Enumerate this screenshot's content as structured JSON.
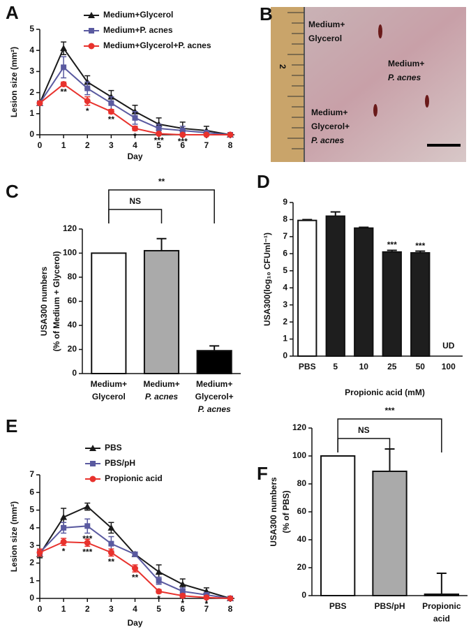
{
  "chart_data": [
    {
      "type": "line",
      "panel": "A",
      "xlabel": "Day",
      "ylabel": [
        "Lesion size (mm²)"
      ],
      "x": [
        0,
        1,
        2,
        3,
        4,
        5,
        6,
        7,
        8
      ],
      "xlim": [
        0,
        8
      ],
      "xticks": [
        0,
        1,
        2,
        3,
        4,
        5,
        6,
        7,
        8
      ],
      "ylim": [
        0,
        5
      ],
      "yticks": [
        0,
        1,
        2,
        3,
        4,
        5
      ],
      "series": [
        {
          "name": "Medium+Glycerol",
          "color": "#1a1a1a",
          "marker": "triangle",
          "values": [
            1.5,
            4.1,
            2.5,
            1.8,
            1.1,
            0.5,
            0.3,
            0.2,
            0.0
          ],
          "errors": [
            0.05,
            0.3,
            0.3,
            0.3,
            0.3,
            0.3,
            0.3,
            0.2,
            0
          ]
        },
        {
          "name": "Medium+P. acnes",
          "color": "#5a5aa0",
          "marker": "square",
          "values": [
            1.5,
            3.2,
            2.2,
            1.5,
            0.8,
            0.3,
            0.2,
            0.1,
            0.0
          ],
          "errors": [
            0.05,
            0.5,
            0.3,
            0.3,
            0.3,
            0.2,
            0.2,
            0.1,
            0
          ]
        },
        {
          "name": "Medium+Glycerol+P. acnes",
          "color": "#e8322d",
          "marker": "circle",
          "values": [
            1.5,
            2.4,
            1.6,
            1.1,
            0.3,
            0.05,
            0.0,
            0.0,
            0.0
          ],
          "errors": [
            0.05,
            0.1,
            0.2,
            0.1,
            0.1,
            0.05,
            0.05,
            0,
            0
          ],
          "significance": [
            null,
            "**",
            "*",
            "**",
            "*",
            "***",
            "***",
            null,
            null
          ]
        }
      ]
    },
    {
      "type": "bar",
      "panel": "C",
      "ylabel": [
        "USA300 numbers",
        "(% of Medium + Glycerol)"
      ],
      "categories": [
        [
          "Medium+",
          "Glycerol"
        ],
        [
          "Medium+",
          "P. acnes"
        ],
        [
          "Medium+",
          "Glycerol+",
          "P. acnes"
        ]
      ],
      "values": [
        100,
        102,
        19
      ],
      "errors": [
        0,
        10,
        4
      ],
      "colors": [
        "#ffffff",
        "#aaaaaa",
        "#000000"
      ],
      "ylim": [
        0,
        120
      ],
      "yticks": [
        0,
        20,
        40,
        60,
        80,
        100,
        120
      ],
      "brackets": [
        {
          "from": 0,
          "to": 1,
          "label": "NS"
        },
        {
          "from": 0,
          "to": 2,
          "label": "**"
        }
      ]
    },
    {
      "type": "bar",
      "panel": "D",
      "xlabel": "Propionic acid (mM)",
      "ylabel": [
        "USA300(log₁₀ CFUml⁻¹)"
      ],
      "categories": [
        "PBS",
        "5",
        "10",
        "25",
        "50",
        "100"
      ],
      "values": [
        7.95,
        8.2,
        7.5,
        6.1,
        6.05,
        null
      ],
      "errors": [
        0.05,
        0.25,
        0.05,
        0.1,
        0.1,
        null
      ],
      "value_labels": [
        null,
        null,
        null,
        null,
        null,
        "UD"
      ],
      "significance": [
        null,
        null,
        null,
        "***",
        "***",
        null
      ],
      "colors": [
        "#ffffff",
        "#1e1e1e",
        "#1e1e1e",
        "#1e1e1e",
        "#1e1e1e",
        "#1e1e1e"
      ],
      "ylim": [
        0,
        9
      ],
      "yticks": [
        0,
        1,
        2,
        3,
        4,
        5,
        6,
        7,
        8,
        9
      ]
    },
    {
      "type": "line",
      "panel": "E",
      "xlabel": "Day",
      "ylabel": [
        "Lesion size (mm²)"
      ],
      "x": [
        0,
        1,
        2,
        3,
        4,
        5,
        6,
        7,
        8
      ],
      "xlim": [
        0,
        8
      ],
      "xticks": [
        0,
        1,
        2,
        3,
        4,
        5,
        6,
        7,
        8
      ],
      "ylim": [
        0,
        7
      ],
      "yticks": [
        0,
        1,
        2,
        3,
        4,
        5,
        6,
        7
      ],
      "series": [
        {
          "name": "PBS",
          "color": "#1a1a1a",
          "marker": "triangle",
          "values": [
            2.5,
            4.6,
            5.2,
            4.0,
            2.5,
            1.5,
            0.8,
            0.4,
            0.0
          ],
          "errors": [
            0.2,
            0.5,
            0.2,
            0.3,
            0.1,
            0.4,
            0.3,
            0.2,
            0
          ]
        },
        {
          "name": "PBS/pH",
          "color": "#5a5aa0",
          "marker": "square",
          "values": [
            2.6,
            4.0,
            4.1,
            3.1,
            2.5,
            1.0,
            0.4,
            0.2,
            0.0
          ],
          "errors": [
            0.2,
            0.3,
            0.4,
            0.4,
            0.1,
            0.2,
            0.2,
            0.1,
            0
          ],
          "significance": [
            null,
            null,
            "***",
            null,
            null,
            null,
            null,
            null,
            null
          ]
        },
        {
          "name": "Propionic acid",
          "color": "#e8322d",
          "marker": "circle",
          "values": [
            2.6,
            3.2,
            3.15,
            2.6,
            1.7,
            0.4,
            0.15,
            0.05,
            0.0
          ],
          "errors": [
            0.2,
            0.2,
            0.2,
            0.2,
            0.2,
            0.1,
            0.1,
            0.05,
            0
          ],
          "significance": [
            null,
            "*",
            "***",
            "**",
            "**",
            "*",
            "*",
            "*",
            null
          ]
        }
      ]
    },
    {
      "type": "bar",
      "panel": "F",
      "ylabel": [
        "USA300 numbers",
        "(% of PBS)"
      ],
      "categories": [
        "PBS",
        "PBS/pH",
        [
          "Propionic",
          "acid"
        ]
      ],
      "values": [
        100,
        89,
        1
      ],
      "errors": [
        0,
        16,
        15
      ],
      "colors": [
        "#ffffff",
        "#aaaaaa",
        "#000000"
      ],
      "ylim": [
        0,
        120
      ],
      "yticks": [
        0,
        20,
        40,
        60,
        80,
        100,
        120
      ],
      "brackets": [
        {
          "from": 0,
          "to": 1,
          "label": "NS"
        },
        {
          "from": 0,
          "to": 2,
          "label": "***"
        }
      ]
    }
  ],
  "photo": {
    "panel": "B",
    "ruler_label": "2",
    "labels": [
      [
        "Medium+",
        "Glycerol"
      ],
      [
        "Medium+",
        "P. acnes"
      ],
      [
        "Medium+",
        "Glycerol+",
        "P. acnes"
      ]
    ]
  }
}
